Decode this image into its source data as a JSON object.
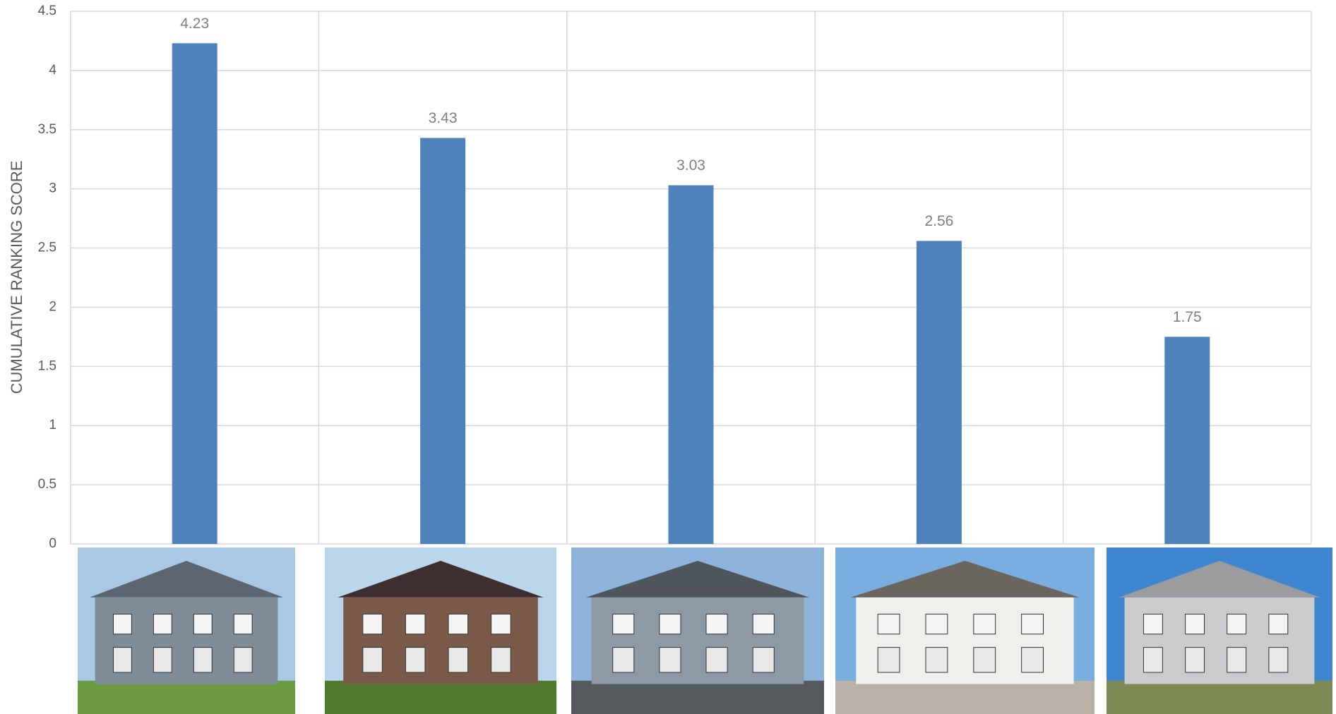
{
  "chart_data": {
    "type": "bar",
    "y_label": "CUMULATIVE RANKING SCORE",
    "categories": [
      null,
      null,
      null,
      null,
      null
    ],
    "values": [
      4.23,
      3.43,
      3.03,
      2.56,
      1.75
    ],
    "color": "#4f81bd",
    "ylim": [
      0,
      4.5
    ],
    "yticks": [
      0,
      0.5,
      1,
      1.5,
      2,
      2.5,
      3,
      3.5,
      4,
      4.5
    ],
    "grid": true
  }
}
